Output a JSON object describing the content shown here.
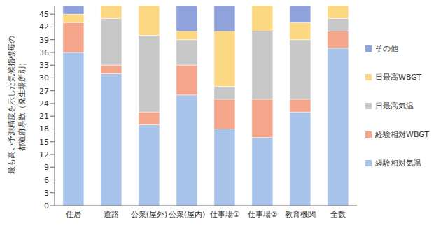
{
  "chart_data": {
    "type": "bar",
    "stacked": true,
    "y_label": [
      "最も高い予測精度を示した気候指標毎の",
      "都道府県数（発生場所別）"
    ],
    "categories": [
      "住居",
      "道路",
      "公衆(屋外)",
      "公衆(屋内)",
      "仕事場①",
      "仕事場②",
      "教育機関",
      "全数"
    ],
    "series": [
      {
        "name": "経験相対気温",
        "color": "#a9c4ea",
        "values": [
          36,
          31,
          19,
          26,
          18,
          16,
          22,
          37
        ]
      },
      {
        "name": "経験相対WBGT",
        "color": "#f4a58a",
        "values": [
          7,
          2,
          3,
          7,
          7,
          9,
          3,
          4
        ]
      },
      {
        "name": "日最高気温",
        "color": "#c8c8c8",
        "values": [
          0,
          11,
          18,
          6,
          3,
          16,
          14,
          3
        ]
      },
      {
        "name": "日最高WBGT",
        "color": "#fdd882",
        "values": [
          2,
          3,
          7,
          2,
          13,
          6,
          4,
          3
        ]
      },
      {
        "name": "その他",
        "color": "#8fa2dc",
        "values": [
          2,
          0,
          0,
          6,
          6,
          0,
          4,
          0
        ]
      }
    ],
    "ylim": [
      0,
      47
    ],
    "yticks": [
      0,
      3,
      6,
      9,
      12,
      15,
      18,
      21,
      24,
      27,
      30,
      33,
      36,
      39,
      42,
      45
    ],
    "grid": false,
    "legend": "right"
  }
}
